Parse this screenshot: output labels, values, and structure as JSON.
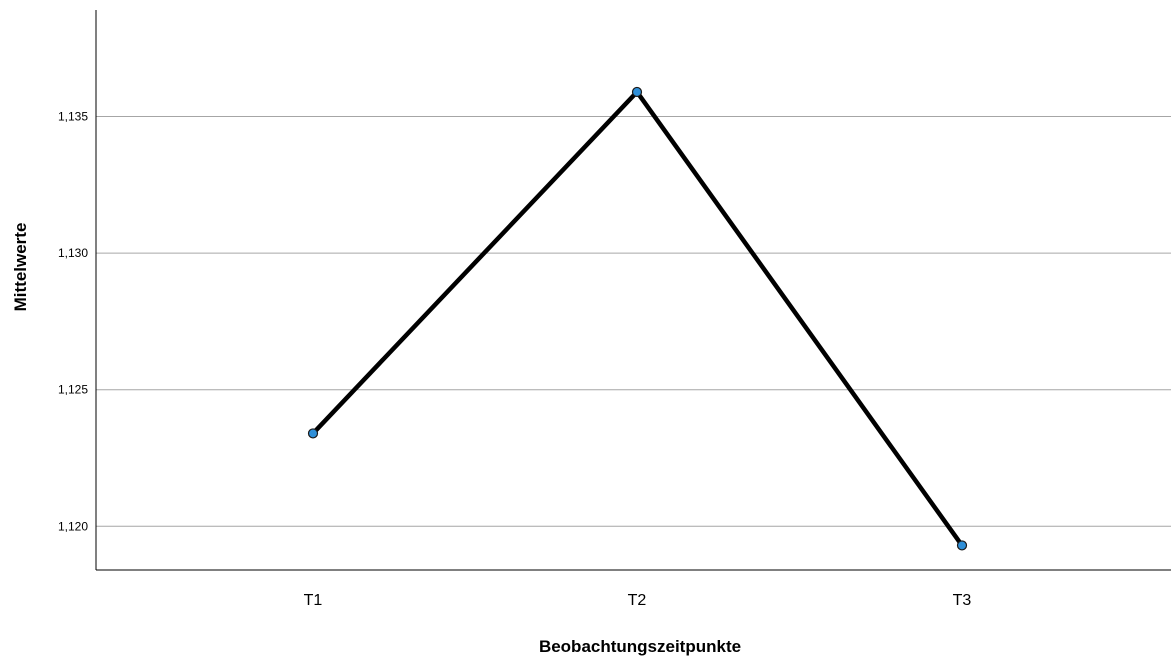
{
  "chart_data": {
    "type": "line",
    "categories": [
      "T1",
      "T2",
      "T3"
    ],
    "series": [
      {
        "values": [
          1.1234,
          1.1359,
          1.1193
        ]
      }
    ],
    "xlabel": "Beobachtungszeitpunkte",
    "ylabel": "Mittelwerte",
    "ylim": [
      1.1184,
      1.1389
    ],
    "yticks": [
      1.12,
      1.125,
      1.13,
      1.135
    ],
    "ytick_labels": [
      "1,120",
      "1,125",
      "1,130",
      "1,135"
    ],
    "grid": "horizontal",
    "legend": "none"
  },
  "colors": {
    "line": "#000000",
    "marker_fill": "#2f8fd8",
    "gridline": "#a6a6a6"
  }
}
